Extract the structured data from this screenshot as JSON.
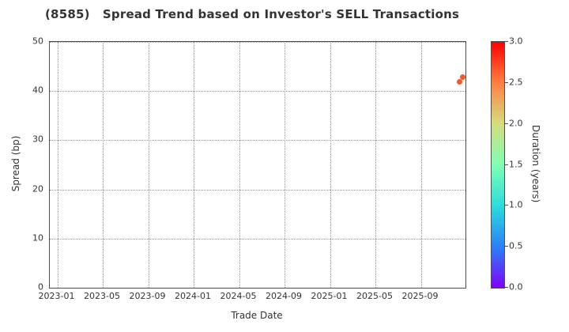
{
  "chart_data": {
    "type": "scatter",
    "title": "(8585)   Spread Trend based on Investor's SELL Transactions",
    "xlabel": "Trade Date",
    "ylabel": "Spread (bp)",
    "ylim": [
      0,
      50
    ],
    "yticks": [
      0,
      10,
      20,
      30,
      40,
      50
    ],
    "xticks": [
      "2023-01",
      "2023-05",
      "2023-09",
      "2024-01",
      "2024-05",
      "2024-09",
      "2025-01",
      "2025-05",
      "2025-09"
    ],
    "grid": "dotted",
    "legend": "none",
    "points": [
      {
        "date": "2025-12-13",
        "spread": 41.9,
        "duration": 2.6,
        "color": "#f2582f"
      },
      {
        "date": "2025-12-22",
        "spread": 42.9,
        "duration": 2.6,
        "color": "#f2582f"
      }
    ],
    "colorbar": {
      "label": "Duration (years)",
      "min": 0.0,
      "max": 3.0,
      "ticks": [
        "3.0",
        "2.5",
        "2.0",
        "1.5",
        "1.0",
        "0.5",
        "0.0"
      ],
      "colormap": "rainbow",
      "gradient_stops_bottom_to_top": [
        "#8000ff",
        "#2b80f7",
        "#2bdddd",
        "#80ffb4",
        "#d4dd80",
        "#ff8042",
        "#ff0000"
      ]
    }
  }
}
